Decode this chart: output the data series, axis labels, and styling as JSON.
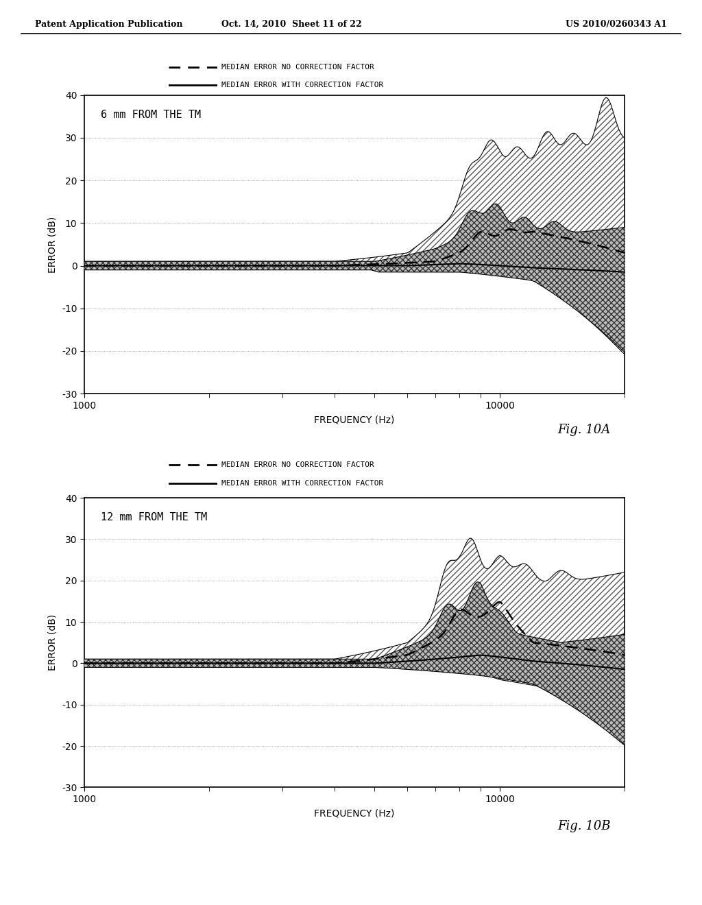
{
  "header_left": "Patent Application Publication",
  "header_mid": "Oct. 14, 2010  Sheet 11 of 22",
  "header_right": "US 2010/0260343 A1",
  "fig_label_A": "Fig. 10A",
  "fig_label_B": "Fig. 10B",
  "chart_A": {
    "title": "6 mm FROM THE TM",
    "xlabel": "FREQUENCY (Hz)",
    "ylabel": "ERROR (dB)",
    "legend_line1": "MEDIAN ERROR NO CORRECTION FACTOR",
    "legend_line2": "MEDIAN ERROR WITH CORRECTION FACTOR"
  },
  "chart_B": {
    "title": "12 mm FROM THE TM",
    "xlabel": "FREQUENCY (Hz)",
    "ylabel": "ERROR (dB)",
    "legend_line1": "MEDIAN ERROR NO CORRECTION FACTOR",
    "legend_line2": "MEDIAN ERROR WITH CORRECTION FACTOR"
  },
  "background_color": "#ffffff"
}
